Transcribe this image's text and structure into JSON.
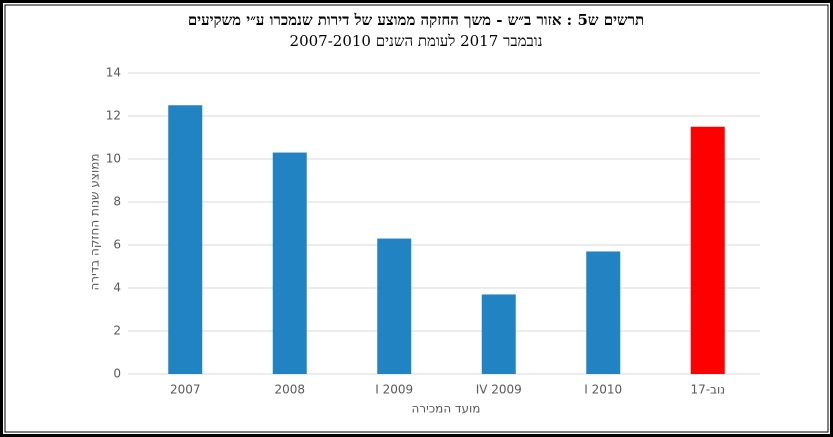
{
  "chart_data": {
    "type": "bar",
    "title": "תרשים ש5 : אזור ב״ש - משך החזקה ממוצע של דירות שנמכרו ע״י משקיעים",
    "subtitle": "נובמבר 2017 לעומת השנים 2007-2010",
    "y_label": "ממוצע שנות החזקה בדירה",
    "x_label": "מועד המכירה",
    "categories": [
      "2007",
      "2008",
      "I 2009",
      "IV 2009",
      "I 2010",
      "נוב-17"
    ],
    "values": [
      12.5,
      10.3,
      6.3,
      3.7,
      5.7,
      11.5
    ],
    "colors": [
      "#2283c3",
      "#2283c3",
      "#2283c3",
      "#2283c3",
      "#2283c3",
      "#ff0000"
    ],
    "ylim": [
      0,
      14
    ],
    "yticks": [
      0,
      2,
      4,
      6,
      8,
      10,
      12,
      14
    ],
    "grid": true
  }
}
